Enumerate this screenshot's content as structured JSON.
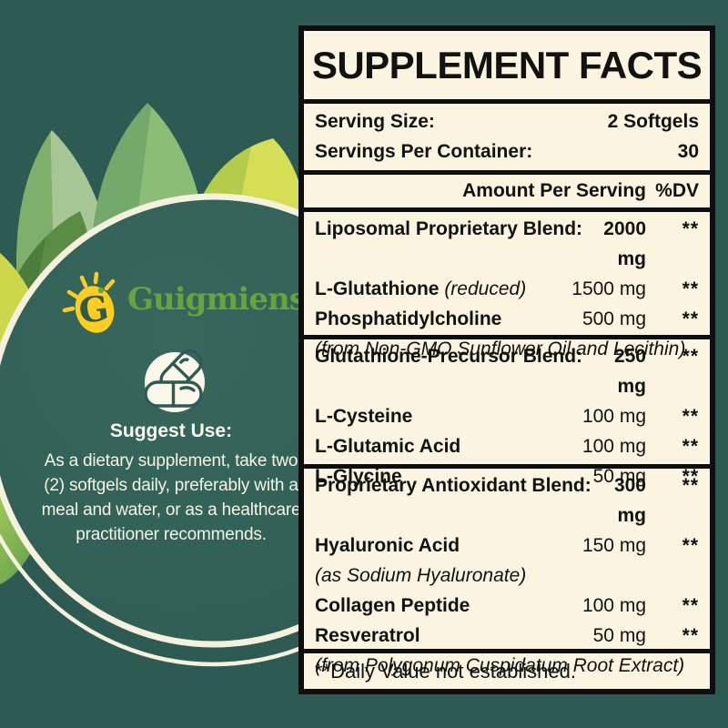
{
  "brand": {
    "name": "Guigmiens",
    "monogram": "G"
  },
  "left_panel": {
    "suggest_use_title": "Suggest Use:",
    "suggest_use_lines": [
      "As a dietary supplement, take two",
      "(2) softgels daily, preferably with a",
      "meal and water, or as a healthcare",
      "practitioner recommends."
    ]
  },
  "panel": {
    "title": "SUPPLEMENT FACTS",
    "serving": [
      {
        "label": "Serving Size:",
        "value": "2 Softgels"
      },
      {
        "label": "Servings Per Container:",
        "value": "30"
      }
    ],
    "header": {
      "amount": "Amount Per Serving",
      "dv": "%DV"
    },
    "sections": [
      {
        "rows": [
          {
            "name": "Liposomal Proprietary Blend:",
            "amount": "2000 mg",
            "dv": "**",
            "bold_amount": true
          },
          {
            "name": "L-Glutathione",
            "name_note": "(reduced)",
            "amount": "1500 mg",
            "dv": "**"
          },
          {
            "name": "Phosphatidylcholine",
            "amount": "500 mg",
            "dv": "**"
          },
          {
            "note": "(from Non-GMO Sunflower Oil and Lecithin)"
          }
        ]
      },
      {
        "rows": [
          {
            "name": "Glutathione-Precursor Blend:",
            "amount": "250 mg",
            "dv": "**",
            "bold_amount": true
          },
          {
            "name": "L-Cysteine",
            "amount": "100 mg",
            "dv": "**"
          },
          {
            "name": "L-Glutamic Acid",
            "amount": "100 mg",
            "dv": "**"
          },
          {
            "name": "L-Glycine",
            "amount": "50 mg",
            "dv": "**"
          }
        ]
      },
      {
        "rows": [
          {
            "name": "Proprietary Antioxidant Blend:",
            "amount": "300 mg",
            "dv": "**",
            "bold_amount": true
          },
          {
            "name": "Hyaluronic Acid",
            "amount": "150 mg",
            "dv": "**"
          },
          {
            "note": "(as Sodium Hyaluronate)"
          },
          {
            "name": "Collagen Peptide",
            "amount": "100 mg",
            "dv": "**"
          },
          {
            "name": "Resveratrol",
            "amount": "50 mg",
            "dv": "**"
          },
          {
            "note": "(from Polygonum Cuspidatum Root Extract)"
          }
        ]
      }
    ],
    "footnote": "**Daily Value not established."
  },
  "colors": {
    "background_teal": "#2d5a53",
    "panel_cream": "#faf4e1",
    "ring_cream": "#f6f1dc",
    "accent_yellow": "#ffcd1d",
    "brand_green": "#69a33e",
    "leaf_lime": "#ccd84a",
    "text_black": "#121212"
  }
}
